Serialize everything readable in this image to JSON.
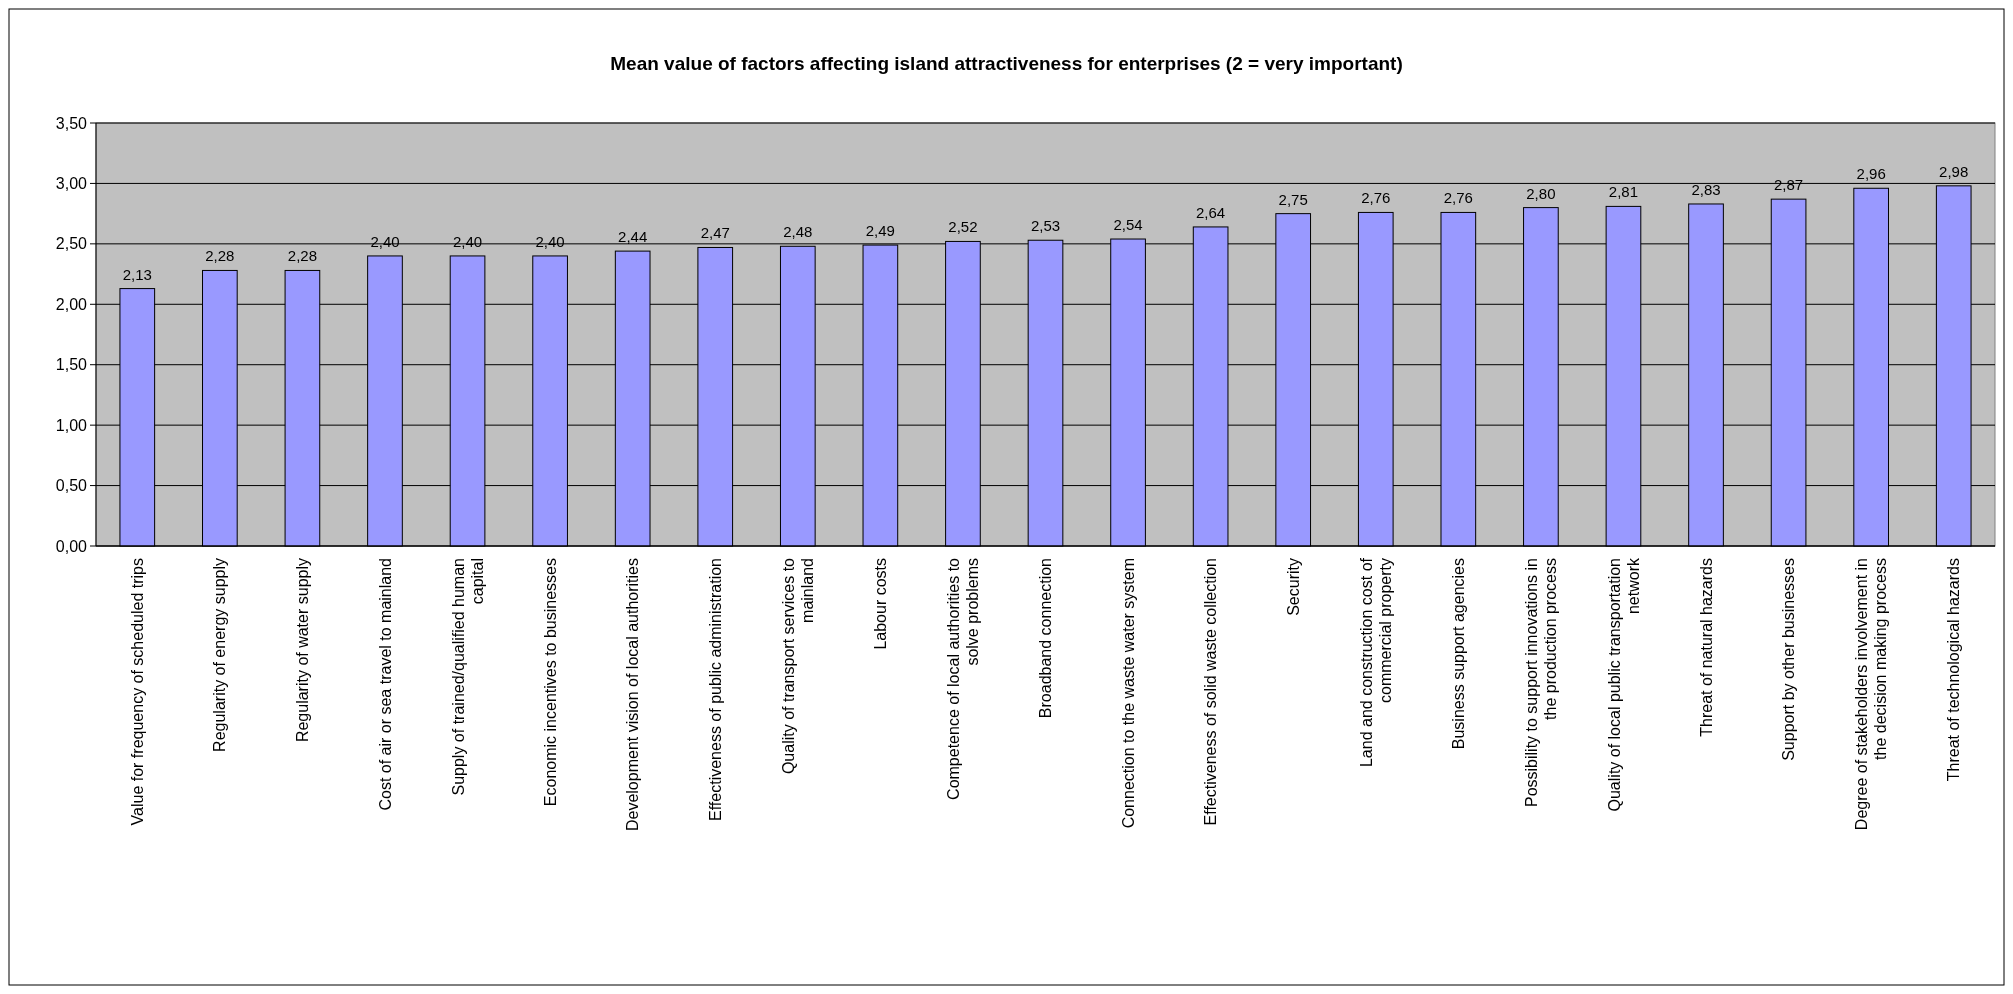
{
  "chart_data": {
    "type": "bar",
    "title": "Mean value of factors affecting island attractiveness for enterprises (2 = very important)",
    "categories": [
      "Value for frequency of scheduled trips",
      "Regularity of energy supply",
      "Regularity of water supply",
      "Cost of air or sea travel to mainland",
      "Supply of trained/qualified human capital",
      "Economic incentives to businesses",
      "Development vision of local authorities",
      "Effectiveness of public administration",
      "Quality of transport services to mainland",
      "Labour costs",
      "Competence of local authorities to solve problems",
      "Broadband connection",
      "Connection to the waste water system",
      "Effectiveness of solid waste collection",
      "Security",
      "Land and construction cost of commercial property",
      "Business support agencies",
      "Possibility to support innovations in the production process",
      "Quality of local public transportation network",
      "Threat of natural hazards",
      "Support by other businesses",
      "Degree of stakeholders involvement in the decision making process",
      "Threat of technological hazards"
    ],
    "values": [
      2.13,
      2.28,
      2.28,
      2.4,
      2.4,
      2.4,
      2.44,
      2.47,
      2.48,
      2.49,
      2.52,
      2.53,
      2.54,
      2.64,
      2.75,
      2.76,
      2.76,
      2.8,
      2.81,
      2.83,
      2.87,
      2.96,
      2.98
    ],
    "value_labels": [
      "2,13",
      "2,28",
      "2,28",
      "2,40",
      "2,40",
      "2,40",
      "2,44",
      "2,47",
      "2,48",
      "2,49",
      "2,52",
      "2,53",
      "2,54",
      "2,64",
      "2,75",
      "2,76",
      "2,76",
      "2,80",
      "2,81",
      "2,83",
      "2,87",
      "2,96",
      "2,98"
    ],
    "color": "#9999ff",
    "ylim": [
      0,
      3.5
    ],
    "yticks": [
      {
        "value": 0,
        "label": "0,00"
      },
      {
        "value": 0.5,
        "label": "0,50"
      },
      {
        "value": 1,
        "label": "1,00"
      },
      {
        "value": 1.5,
        "label": "1,50"
      },
      {
        "value": 2,
        "label": "2,00"
      },
      {
        "value": 2.5,
        "label": "2,50"
      },
      {
        "value": 3,
        "label": "3,00"
      },
      {
        "value": 3.5,
        "label": "3,50"
      }
    ],
    "grid": "y"
  }
}
